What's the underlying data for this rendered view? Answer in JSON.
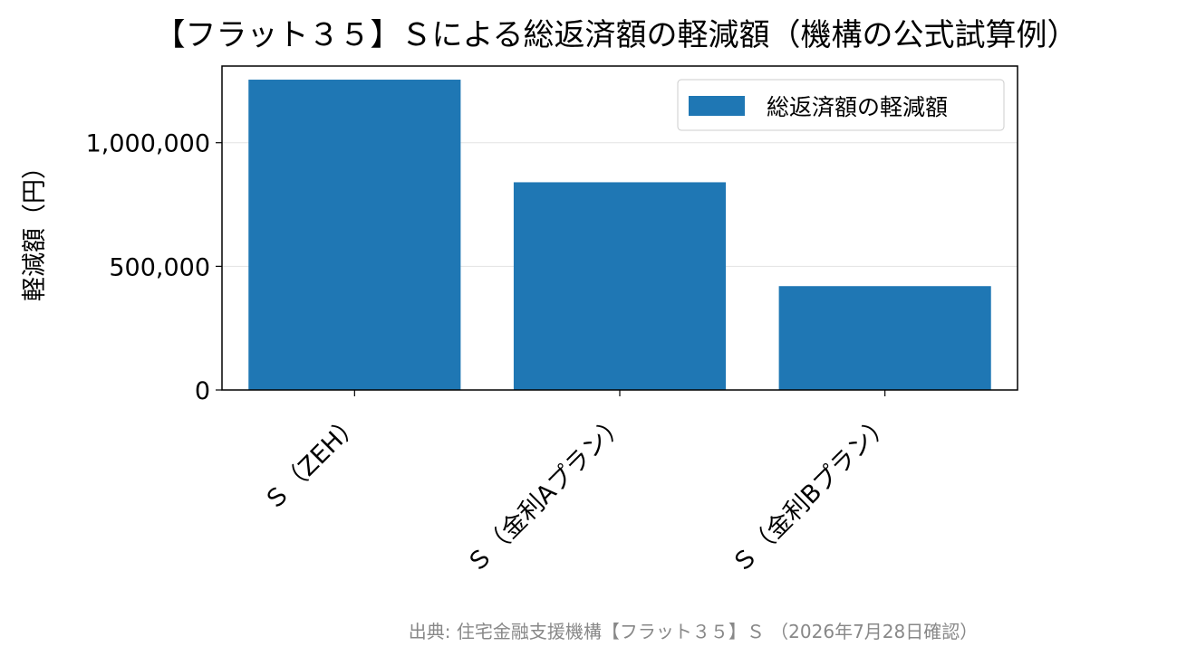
{
  "chart_data": {
    "type": "bar",
    "title": "【フラット３５】Ｓによる総返済額の軽減額（機構の公式試算例）",
    "xlabel": "",
    "ylabel": "軽減額（円）",
    "categories": [
      "Ｓ（ZEH）",
      "Ｓ（金利Aプラン）",
      "Ｓ（金利Bプラン）"
    ],
    "series": [
      {
        "name": "総返済額の軽減額",
        "values": [
          1255000,
          840000,
          420000
        ],
        "color": "#1f77b4"
      }
    ],
    "ylim": [
      0,
      1310000
    ],
    "yticks": [
      0,
      500000,
      1000000
    ],
    "ytick_labels": [
      "0",
      "500,000",
      "1,000,000"
    ],
    "grid": "y",
    "legend_position": "upper right",
    "source": "出典: 住宅金融支援機構【フラット３５】Ｓ （2026年7月28日確認）"
  }
}
